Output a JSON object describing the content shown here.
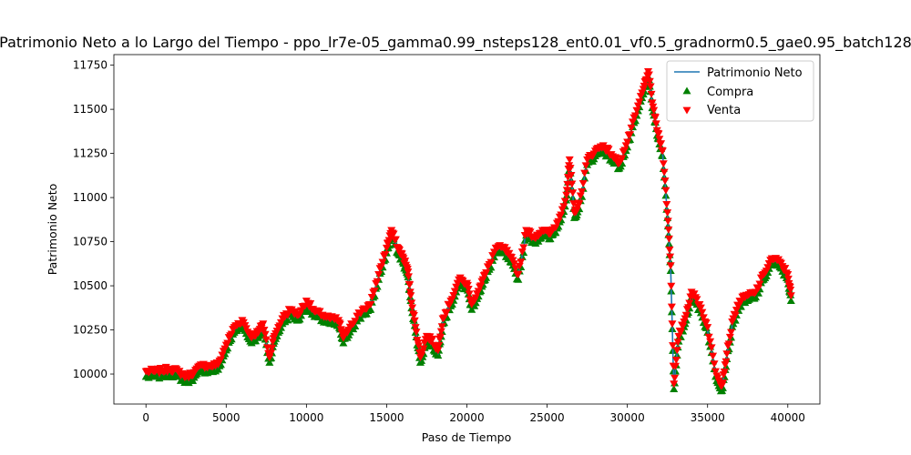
{
  "chart_data": {
    "type": "line",
    "title": "Patrimonio Neto a lo Largo del Tiempo - ppo_lr7e-05_gamma0.99_nsteps128_ent0.01_vf0.5_gradnorm0.5_gae0.95_batch128",
    "xlabel": "Paso de Tiempo",
    "ylabel": "Patrimonio Neto",
    "xlim": [
      -2000,
      42000
    ],
    "ylim": [
      9830,
      11810
    ],
    "x_ticks": [
      0,
      5000,
      10000,
      15000,
      20000,
      25000,
      30000,
      35000,
      40000
    ],
    "y_ticks": [
      10000,
      10250,
      10500,
      10750,
      11000,
      11250,
      11500,
      11750
    ],
    "grid": false,
    "legend_position": "top-right",
    "series": [
      {
        "name": "Patrimonio Neto",
        "kind": "line",
        "color": "#1f77b4",
        "points": [
          [
            0,
            10000
          ],
          [
            500,
            10000
          ],
          [
            1000,
            10005
          ],
          [
            1500,
            10015
          ],
          [
            2000,
            10000
          ],
          [
            2500,
            9970
          ],
          [
            3000,
            9995
          ],
          [
            3500,
            10035
          ],
          [
            4000,
            10030
          ],
          [
            4500,
            10040
          ],
          [
            5000,
            10150
          ],
          [
            5500,
            10250
          ],
          [
            6000,
            10290
          ],
          [
            6500,
            10200
          ],
          [
            7000,
            10220
          ],
          [
            7300,
            10270
          ],
          [
            7700,
            10080
          ],
          [
            8000,
            10200
          ],
          [
            8500,
            10300
          ],
          [
            9000,
            10350
          ],
          [
            9500,
            10320
          ],
          [
            10000,
            10400
          ],
          [
            10500,
            10340
          ],
          [
            11000,
            10320
          ],
          [
            11500,
            10300
          ],
          [
            12000,
            10290
          ],
          [
            12300,
            10190
          ],
          [
            12800,
            10270
          ],
          [
            13500,
            10350
          ],
          [
            14000,
            10380
          ],
          [
            14500,
            10550
          ],
          [
            15000,
            10700
          ],
          [
            15300,
            10800
          ],
          [
            15700,
            10700
          ],
          [
            16000,
            10650
          ],
          [
            16300,
            10580
          ],
          [
            16500,
            10430
          ],
          [
            16800,
            10250
          ],
          [
            17100,
            10080
          ],
          [
            17500,
            10200
          ],
          [
            17800,
            10180
          ],
          [
            18200,
            10120
          ],
          [
            18500,
            10300
          ],
          [
            19000,
            10400
          ],
          [
            19500,
            10520
          ],
          [
            20000,
            10500
          ],
          [
            20300,
            10380
          ],
          [
            20800,
            10480
          ],
          [
            21200,
            10560
          ],
          [
            21800,
            10700
          ],
          [
            22300,
            10700
          ],
          [
            22700,
            10650
          ],
          [
            23200,
            10550
          ],
          [
            23700,
            10800
          ],
          [
            24200,
            10760
          ],
          [
            24700,
            10800
          ],
          [
            25200,
            10780
          ],
          [
            25700,
            10850
          ],
          [
            26200,
            11000
          ],
          [
            26400,
            11200
          ],
          [
            26700,
            10900
          ],
          [
            27000,
            10950
          ],
          [
            27500,
            11200
          ],
          [
            28000,
            11250
          ],
          [
            28500,
            11280
          ],
          [
            29000,
            11230
          ],
          [
            29500,
            11180
          ],
          [
            30000,
            11300
          ],
          [
            30500,
            11450
          ],
          [
            31000,
            11600
          ],
          [
            31300,
            11700
          ],
          [
            31600,
            11500
          ],
          [
            31900,
            11350
          ],
          [
            32200,
            11250
          ],
          [
            32500,
            10900
          ],
          [
            32700,
            10600
          ],
          [
            32900,
            9930
          ],
          [
            33200,
            10200
          ],
          [
            33600,
            10300
          ],
          [
            34000,
            10450
          ],
          [
            34500,
            10380
          ],
          [
            35000,
            10250
          ],
          [
            35500,
            10000
          ],
          [
            35900,
            9920
          ],
          [
            36200,
            10100
          ],
          [
            36600,
            10300
          ],
          [
            37000,
            10400
          ],
          [
            37500,
            10430
          ],
          [
            38000,
            10450
          ],
          [
            38500,
            10550
          ],
          [
            39000,
            10640
          ],
          [
            39500,
            10620
          ],
          [
            40000,
            10550
          ],
          [
            40200,
            10430
          ]
        ]
      },
      {
        "name": "Compra",
        "kind": "scatter",
        "marker": "triangle-up",
        "color": "#008000"
      },
      {
        "name": "Venta",
        "kind": "scatter",
        "marker": "triangle-down",
        "color": "#ff0000"
      }
    ]
  }
}
